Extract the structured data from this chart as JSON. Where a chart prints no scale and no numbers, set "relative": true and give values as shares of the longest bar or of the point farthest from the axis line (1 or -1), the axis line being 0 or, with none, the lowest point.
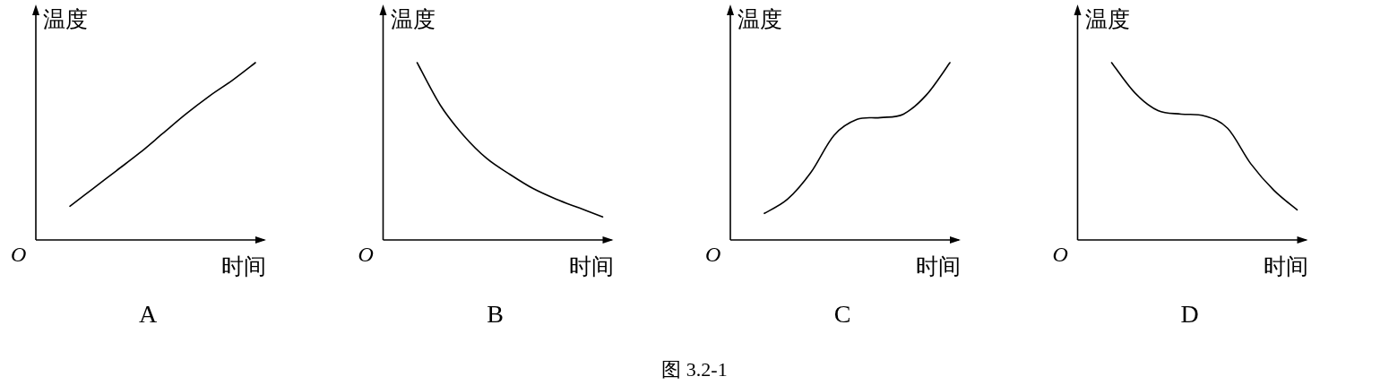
{
  "chart_data": [
    {
      "type": "line",
      "relative": true,
      "title": "A",
      "xlabel": "时间",
      "ylabel": "温度",
      "annotations": [
        "O"
      ],
      "categories": [
        null,
        null,
        null,
        null,
        null,
        null,
        null,
        null,
        null
      ],
      "series": [
        {
          "color": "#000000",
          "values": [
            0.19,
            0.29,
            0.39,
            0.49,
            0.6,
            0.71,
            0.81,
            0.9,
            1.0
          ]
        }
      ]
    },
    {
      "type": "line",
      "relative": true,
      "title": "B",
      "xlabel": "时间",
      "ylabel": "温度",
      "annotations": [
        "O"
      ],
      "categories": [
        null,
        null,
        null,
        null,
        null,
        null,
        null,
        null,
        null
      ],
      "series": [
        {
          "color": "#000000",
          "values": [
            1.0,
            0.76,
            0.59,
            0.46,
            0.37,
            0.29,
            0.23,
            0.18,
            0.13
          ]
        }
      ]
    },
    {
      "type": "line",
      "relative": true,
      "title": "C",
      "xlabel": "时间",
      "ylabel": "温度",
      "annotations": [
        "O"
      ],
      "categories": [
        null,
        null,
        null,
        null,
        null,
        null,
        null,
        null,
        null
      ],
      "series": [
        {
          "color": "#000000",
          "values": [
            0.15,
            0.23,
            0.38,
            0.59,
            0.68,
            0.69,
            0.71,
            0.82,
            1.0
          ]
        }
      ]
    },
    {
      "type": "line",
      "relative": true,
      "title": "D",
      "xlabel": "时间",
      "ylabel": "温度",
      "annotations": [
        "O",
        "图 3.2-1"
      ],
      "categories": [
        null,
        null,
        null,
        null,
        null,
        null,
        null,
        null,
        null
      ],
      "series": [
        {
          "color": "#000000",
          "values": [
            1.0,
            0.83,
            0.73,
            0.71,
            0.7,
            0.63,
            0.43,
            0.28,
            0.17
          ]
        }
      ]
    }
  ]
}
